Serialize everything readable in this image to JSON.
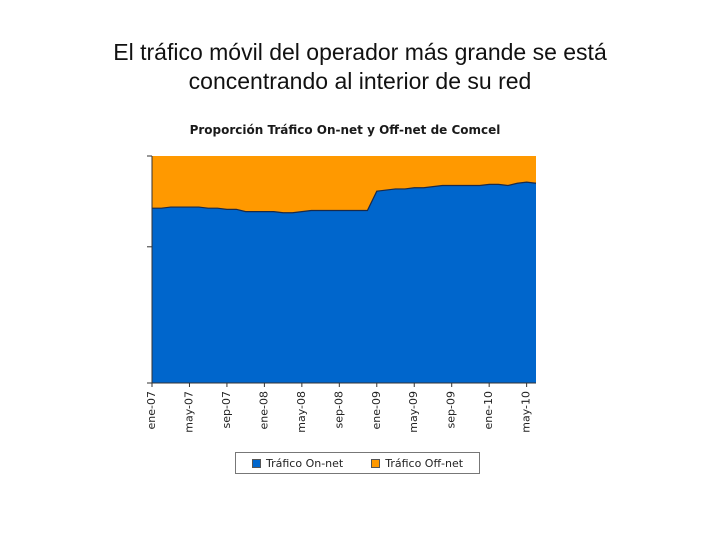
{
  "slide": {
    "title_line1": "El tráfico móvil del operador más grande se está",
    "title_line2": "concentrando al interior de su red"
  },
  "chart_data": {
    "type": "area",
    "stacked": "100%",
    "title": "Proporción Tráfico On-net y Off-net de Comcel",
    "xlabel": "",
    "ylabel": "",
    "ylim": [
      0,
      1
    ],
    "grid": false,
    "legend_position": "bottom",
    "tick_labels": [
      "ene-07",
      "may-07",
      "sep-07",
      "ene-08",
      "may-08",
      "sep-08",
      "ene-09",
      "may-09",
      "sep-09",
      "ene-10",
      "may-10"
    ],
    "tick_positions": [
      0,
      4,
      8,
      12,
      16,
      20,
      24,
      28,
      32,
      36,
      40
    ],
    "x": [
      0,
      1,
      2,
      3,
      4,
      5,
      6,
      7,
      8,
      9,
      10,
      11,
      12,
      13,
      14,
      15,
      16,
      17,
      18,
      19,
      20,
      21,
      22,
      23,
      24,
      25,
      26,
      27,
      28,
      29,
      30,
      31,
      32,
      33,
      34,
      35,
      36,
      37,
      38,
      39,
      40,
      41
    ],
    "series": [
      {
        "name": "Tráfico On-net",
        "color": "#0066cc",
        "values": [
          0.77,
          0.77,
          0.775,
          0.775,
          0.775,
          0.775,
          0.77,
          0.77,
          0.765,
          0.765,
          0.755,
          0.755,
          0.755,
          0.755,
          0.75,
          0.75,
          0.755,
          0.76,
          0.76,
          0.76,
          0.76,
          0.76,
          0.76,
          0.76,
          0.845,
          0.85,
          0.855,
          0.855,
          0.86,
          0.86,
          0.865,
          0.87,
          0.87,
          0.87,
          0.87,
          0.87,
          0.875,
          0.875,
          0.87,
          0.88,
          0.885,
          0.88
        ]
      },
      {
        "name": "Tráfico Off-net",
        "color": "#ff9900",
        "values": [
          0.23,
          0.23,
          0.225,
          0.225,
          0.225,
          0.225,
          0.23,
          0.23,
          0.235,
          0.235,
          0.245,
          0.245,
          0.245,
          0.245,
          0.25,
          0.25,
          0.245,
          0.24,
          0.24,
          0.24,
          0.24,
          0.24,
          0.24,
          0.24,
          0.155,
          0.15,
          0.145,
          0.145,
          0.14,
          0.14,
          0.135,
          0.13,
          0.13,
          0.13,
          0.13,
          0.13,
          0.125,
          0.125,
          0.13,
          0.12,
          0.115,
          0.12
        ]
      }
    ]
  }
}
